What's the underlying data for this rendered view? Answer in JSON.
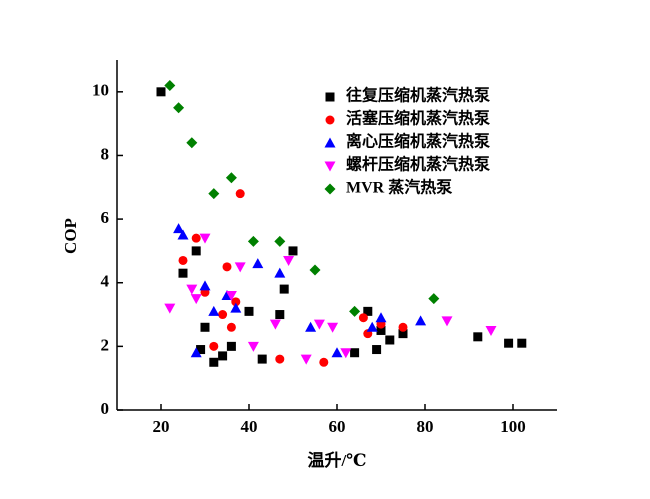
{
  "chart_data": {
    "type": "scatter",
    "x_label": "温升/℃",
    "y_label": "COP",
    "xlim": [
      10,
      110
    ],
    "ylim": [
      0,
      11
    ],
    "xticks": [
      20,
      40,
      60,
      80,
      100
    ],
    "yticks": [
      0,
      2,
      4,
      6,
      8,
      10
    ],
    "legend": "upper right",
    "series": [
      {
        "name": "往复压缩机蒸汽热泵",
        "color": "#000000",
        "marker": "square",
        "x": [
          20,
          25,
          28,
          29,
          30,
          32,
          34,
          36,
          40,
          43,
          47,
          48,
          50,
          64,
          67,
          69,
          70,
          72,
          75,
          92,
          99,
          102
        ],
        "values": [
          10.0,
          4.3,
          5.0,
          1.9,
          2.6,
          1.5,
          1.7,
          2.0,
          3.1,
          1.6,
          3.0,
          3.8,
          5.0,
          1.8,
          3.1,
          1.9,
          2.5,
          2.2,
          2.4,
          2.3,
          2.1,
          2.1
        ]
      },
      {
        "name": "活塞压缩机蒸汽热泵",
        "color": "#ff0000",
        "marker": "circle",
        "x": [
          25,
          28,
          30,
          32,
          34,
          35,
          36,
          37,
          38,
          47,
          57,
          66,
          67,
          70,
          75
        ],
        "values": [
          4.7,
          5.4,
          3.7,
          2.0,
          3.0,
          4.5,
          2.6,
          3.4,
          6.8,
          1.6,
          1.5,
          2.9,
          2.4,
          2.7,
          2.6
        ]
      },
      {
        "name": "离心压缩机蒸汽热泵",
        "color": "#0000ff",
        "marker": "triangle-up",
        "x": [
          24,
          25,
          28,
          30,
          32,
          35,
          37,
          42,
          47,
          54,
          60,
          68,
          70,
          79
        ],
        "values": [
          5.7,
          5.5,
          1.8,
          3.9,
          3.1,
          3.6,
          3.2,
          4.6,
          4.3,
          2.6,
          1.8,
          2.6,
          2.9,
          2.8
        ]
      },
      {
        "name": "螺杆压缩机蒸汽热泵",
        "color": "#ff00ff",
        "marker": "triangle-down",
        "x": [
          22,
          27,
          28,
          30,
          36,
          38,
          41,
          46,
          49,
          53,
          56,
          59,
          62,
          85,
          95
        ],
        "values": [
          3.2,
          3.8,
          3.5,
          5.4,
          3.6,
          4.5,
          2.0,
          2.7,
          4.7,
          1.6,
          2.7,
          2.6,
          1.8,
          2.8,
          2.5
        ]
      },
      {
        "name": "MVR 蒸汽热泵",
        "color": "#008000",
        "marker": "diamond",
        "x": [
          22,
          24,
          27,
          32,
          36,
          41,
          47,
          55,
          64,
          82
        ],
        "values": [
          10.2,
          9.5,
          8.4,
          6.8,
          7.3,
          5.3,
          5.3,
          4.4,
          3.1,
          3.5
        ]
      }
    ]
  }
}
